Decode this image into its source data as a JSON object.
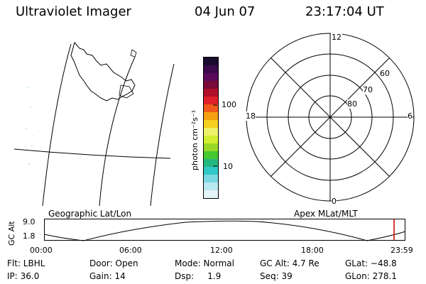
{
  "header": {
    "instrument": "Ultraviolet Imager",
    "date": "04 Jun 07",
    "time": "23:17:04 UT"
  },
  "colorbar": {
    "unit_label": "photon cm⁻²s⁻¹",
    "ticks": [
      "100",
      "10"
    ],
    "colors": [
      "#1a0a2e",
      "#3a0a4a",
      "#5a0a5a",
      "#7a0a3a",
      "#b0102a",
      "#e0202a",
      "#f05a1a",
      "#f5a010",
      "#f5d020",
      "#eef26a",
      "#d2ee30",
      "#9ad828",
      "#46c830",
      "#22b880",
      "#30c8c8",
      "#7ad8e0",
      "#b8e8f0",
      "#e4f4f8"
    ]
  },
  "polar": {
    "labels": {
      "top": "12",
      "left": "18",
      "right": "6",
      "bottom": "0"
    },
    "ring_labels": [
      "60",
      "70",
      "80"
    ]
  },
  "timeline": {
    "left_title": "Geographic Lat/Lon",
    "right_title": "Apex MLat/MLT",
    "y_axis_label": "GC Alt",
    "y_ticks": [
      "9.0",
      "1.8"
    ],
    "x_ticks": [
      "00:00",
      "06:00",
      "12:00",
      "18:00",
      "23:59"
    ],
    "marker_color": "#cc0000"
  },
  "info": {
    "flt": "Flt: LBHL",
    "ip": "IP: 36.0",
    "door": "Door: Open",
    "gain": "Gain: 14",
    "mode": "Mode: Normal",
    "dsp": "Dsp:     1.9",
    "gc_alt": "GC Alt: 4.7 Re",
    "seq": "Seq: 39",
    "glat": "GLat: −48.8",
    "glon": "GLon: 278.1"
  }
}
